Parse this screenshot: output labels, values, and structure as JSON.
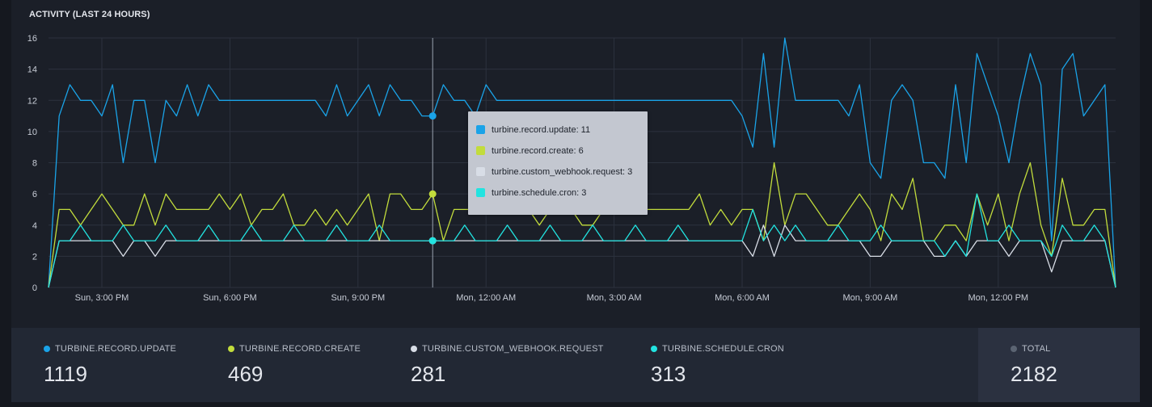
{
  "panel": {
    "title": "ACTIVITY (LAST 24 HOURS)"
  },
  "colors": {
    "background": "#15181f",
    "panel": "#1b1f28",
    "grid": "#2c323e",
    "update": "#1aa3e8",
    "create": "#c2dc3c",
    "webhook": "#d8dde6",
    "cron": "#22e3e0",
    "total": "#5b6472"
  },
  "chart_data": {
    "type": "line",
    "title": "ACTIVITY (LAST 24 HOURS)",
    "ylim": [
      0,
      16
    ],
    "y_ticks": [
      0,
      2,
      4,
      6,
      8,
      10,
      12,
      14,
      16
    ],
    "x_ticks": [
      {
        "label": "Sun, 3:00 PM",
        "index": 5
      },
      {
        "label": "Sun, 6:00 PM",
        "index": 17
      },
      {
        "label": "Sun, 9:00 PM",
        "index": 29
      },
      {
        "label": "Mon, 12:00 AM",
        "index": 41
      },
      {
        "label": "Mon, 3:00 AM",
        "index": 53
      },
      {
        "label": "Mon, 6:00 AM",
        "index": 65
      },
      {
        "label": "Mon, 9:00 AM",
        "index": 77
      },
      {
        "label": "Mon, 12:00 PM",
        "index": 89
      }
    ],
    "grid": true,
    "hover_index": 36,
    "series": [
      {
        "name": "turbine.record.update",
        "color": "#1aa3e8",
        "values": [
          0,
          11,
          13,
          12,
          12,
          11,
          13,
          8,
          12,
          12,
          8,
          12,
          11,
          13,
          11,
          13,
          12,
          12,
          12,
          12,
          12,
          12,
          12,
          12,
          12,
          12,
          11,
          13,
          11,
          12,
          13,
          11,
          13,
          12,
          12,
          11,
          11,
          13,
          12,
          12,
          11,
          13,
          12,
          12,
          12,
          12,
          12,
          12,
          12,
          12,
          12,
          12,
          12,
          12,
          12,
          12,
          12,
          12,
          12,
          12,
          12,
          12,
          12,
          12,
          12,
          11,
          9,
          15,
          9,
          16,
          12,
          12,
          12,
          12,
          12,
          11,
          13,
          8,
          7,
          12,
          13,
          12,
          8,
          8,
          7,
          13,
          8,
          15,
          13,
          11,
          8,
          12,
          15,
          13,
          3,
          14,
          15,
          11,
          12,
          13,
          0
        ]
      },
      {
        "name": "turbine.record.create",
        "color": "#c2dc3c",
        "values": [
          0,
          5,
          5,
          4,
          5,
          6,
          5,
          4,
          4,
          6,
          4,
          6,
          5,
          5,
          5,
          5,
          6,
          5,
          6,
          4,
          5,
          5,
          6,
          4,
          4,
          5,
          4,
          5,
          4,
          5,
          6,
          3,
          6,
          6,
          5,
          5,
          6,
          3,
          5,
          5,
          5,
          5,
          6,
          6,
          5,
          5,
          4,
          5,
          6,
          5,
          4,
          4,
          5,
          5,
          5,
          5,
          5,
          5,
          5,
          5,
          5,
          6,
          4,
          5,
          4,
          5,
          5,
          3,
          8,
          4,
          6,
          6,
          5,
          4,
          4,
          5,
          6,
          5,
          3,
          6,
          5,
          7,
          3,
          3,
          4,
          4,
          3,
          6,
          4,
          6,
          3,
          6,
          8,
          4,
          2,
          7,
          4,
          4,
          5,
          5,
          0
        ]
      },
      {
        "name": "turbine.custom_webhook.request",
        "color": "#d8dde6",
        "values": [
          0,
          3,
          3,
          3,
          3,
          3,
          3,
          2,
          3,
          3,
          2,
          3,
          3,
          3,
          3,
          3,
          3,
          3,
          3,
          3,
          3,
          3,
          3,
          3,
          3,
          3,
          3,
          3,
          3,
          3,
          3,
          3,
          3,
          3,
          3,
          3,
          3,
          3,
          3,
          3,
          3,
          3,
          3,
          3,
          3,
          3,
          3,
          3,
          3,
          3,
          3,
          3,
          3,
          3,
          3,
          3,
          3,
          3,
          3,
          3,
          3,
          3,
          3,
          3,
          3,
          3,
          2,
          4,
          2,
          4,
          3,
          3,
          3,
          3,
          3,
          3,
          3,
          2,
          2,
          3,
          3,
          3,
          3,
          2,
          2,
          3,
          2,
          3,
          3,
          3,
          2,
          3,
          3,
          3,
          1,
          3,
          3,
          3,
          3,
          3,
          0
        ]
      },
      {
        "name": "turbine.schedule.cron",
        "color": "#22e3e0",
        "values": [
          0,
          3,
          3,
          4,
          3,
          3,
          3,
          4,
          3,
          3,
          3,
          4,
          3,
          3,
          3,
          4,
          3,
          3,
          3,
          4,
          3,
          3,
          3,
          4,
          3,
          3,
          3,
          4,
          3,
          3,
          3,
          4,
          3,
          3,
          3,
          3,
          3,
          3,
          3,
          4,
          3,
          3,
          3,
          4,
          3,
          3,
          3,
          4,
          3,
          3,
          3,
          4,
          3,
          3,
          3,
          4,
          3,
          3,
          3,
          4,
          3,
          3,
          3,
          3,
          3,
          3,
          5,
          3,
          4,
          3,
          4,
          3,
          3,
          3,
          4,
          3,
          3,
          3,
          4,
          3,
          3,
          3,
          3,
          3,
          2,
          3,
          2,
          6,
          3,
          3,
          4,
          3,
          3,
          3,
          2,
          4,
          3,
          3,
          4,
          3,
          0
        ]
      }
    ],
    "tooltip": [
      {
        "label": "turbine.record.update: 11",
        "color": "#1aa3e8"
      },
      {
        "label": "turbine.record.create: 6",
        "color": "#c2dc3c"
      },
      {
        "label": "turbine.custom_webhook.request: 3",
        "color": "#d8dde6"
      },
      {
        "label": "turbine.schedule.cron: 3",
        "color": "#22e3e0"
      }
    ]
  },
  "stats": [
    {
      "label": "TURBINE.RECORD.UPDATE",
      "value": "1119",
      "color": "#1aa3e8"
    },
    {
      "label": "TURBINE.RECORD.CREATE",
      "value": "469",
      "color": "#c2dc3c"
    },
    {
      "label": "TURBINE.CUSTOM_WEBHOOK.REQUEST",
      "value": "281",
      "color": "#d8dde6"
    },
    {
      "label": "TURBINE.SCHEDULE.CRON",
      "value": "313",
      "color": "#22e3e0"
    }
  ],
  "total": {
    "label": "TOTAL",
    "value": "2182",
    "color": "#5b6472"
  }
}
